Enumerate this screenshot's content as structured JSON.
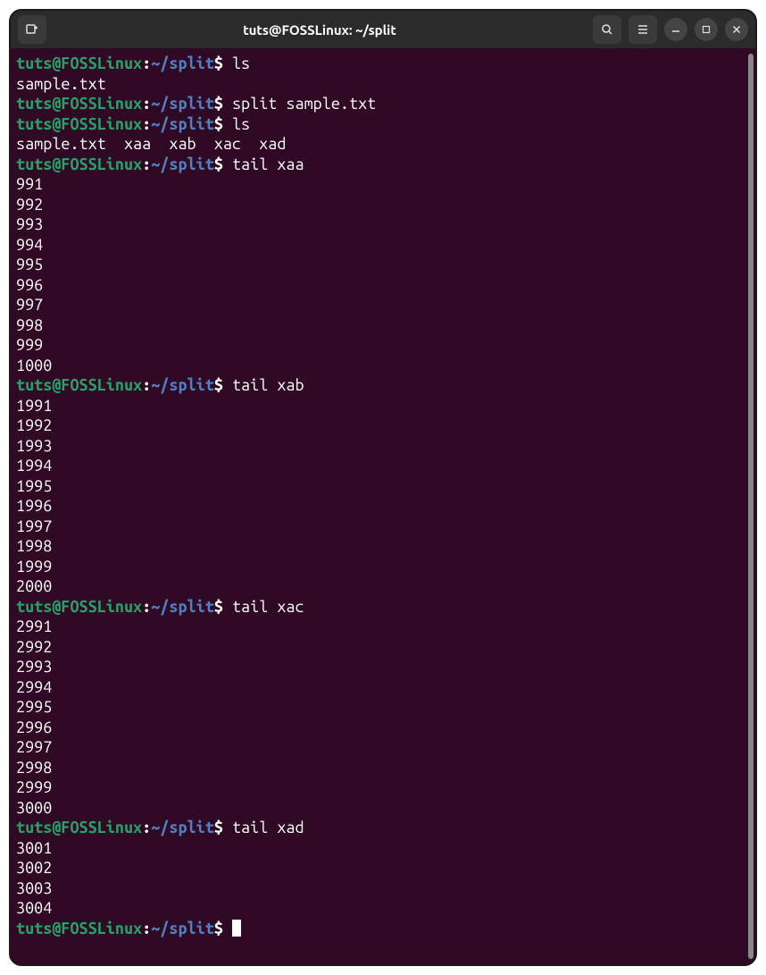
{
  "window": {
    "title": "tuts@FOSSLinux: ~/split"
  },
  "prompt": {
    "user": "tuts@FOSSLinux",
    "path": "~/split",
    "symbol": "$"
  },
  "blocks": [
    {
      "command": "ls",
      "output": [
        "sample.txt"
      ]
    },
    {
      "command": "split sample.txt",
      "output": []
    },
    {
      "command": "ls",
      "output": [
        "sample.txt  xaa  xab  xac  xad"
      ]
    },
    {
      "command": "tail xaa",
      "output": [
        "991",
        "992",
        "993",
        "994",
        "995",
        "996",
        "997",
        "998",
        "999",
        "1000"
      ]
    },
    {
      "command": "tail xab",
      "output": [
        "1991",
        "1992",
        "1993",
        "1994",
        "1995",
        "1996",
        "1997",
        "1998",
        "1999",
        "2000"
      ]
    },
    {
      "command": "tail xac",
      "output": [
        "2991",
        "2992",
        "2993",
        "2994",
        "2995",
        "2996",
        "2997",
        "2998",
        "2999",
        "3000"
      ]
    },
    {
      "command": "tail xad",
      "output": [
        "3001",
        "3002",
        "3003",
        "3004"
      ]
    }
  ],
  "colors": {
    "terminal_bg": "#300a24",
    "titlebar_bg": "#2b2b2b",
    "prompt_user": "#26a269",
    "prompt_path": "#5080c0",
    "text": "#ffffff",
    "button_bg": "#3a3a3a",
    "window_control_bg": "#444444",
    "scrollbar": "#888888"
  }
}
